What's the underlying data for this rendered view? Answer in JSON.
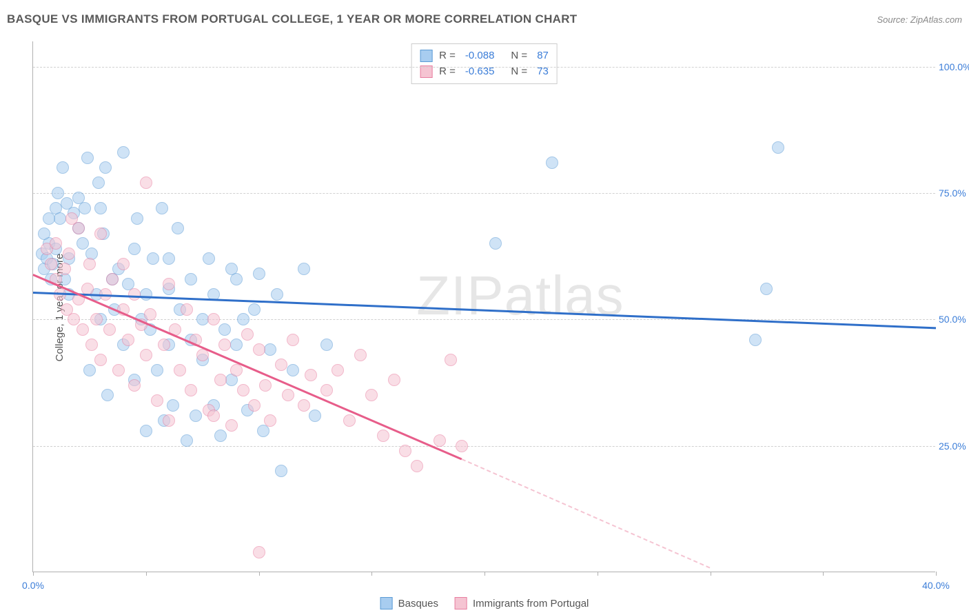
{
  "header": {
    "title": "BASQUE VS IMMIGRANTS FROM PORTUGAL COLLEGE, 1 YEAR OR MORE CORRELATION CHART",
    "source": "Source: ZipAtlas.com"
  },
  "watermark": "ZIPatlas",
  "chart": {
    "type": "scatter",
    "ylabel": "College, 1 year or more",
    "background_color": "#ffffff",
    "grid_color": "#d0d0d0",
    "axis_color": "#b0b0b0",
    "tick_label_color": "#3b7dd8",
    "xlim": [
      0,
      40
    ],
    "ylim": [
      0,
      105
    ],
    "xticks": [
      0,
      5,
      10,
      15,
      20,
      25,
      30,
      35,
      40
    ],
    "xtick_labels": {
      "0": "0.0%",
      "40": "40.0%"
    },
    "yticks": [
      25,
      50,
      75,
      100
    ],
    "ytick_labels": {
      "25": "25.0%",
      "50": "50.0%",
      "75": "75.0%",
      "100": "100.0%"
    },
    "marker_size": 18,
    "label_fontsize": 15,
    "tick_fontsize": 14,
    "series": [
      {
        "name": "Basques",
        "color_fill": "#a8cdf0",
        "color_stroke": "#5b9bd5",
        "reg_line_color": "#2f6fc9",
        "R": "-0.088",
        "N": "87",
        "regression": {
          "x1": 0,
          "y1": 55.5,
          "x2": 40,
          "y2": 48.5
        },
        "points": [
          [
            0.4,
            63
          ],
          [
            0.5,
            60
          ],
          [
            0.6,
            62
          ],
          [
            0.7,
            65
          ],
          [
            0.5,
            67
          ],
          [
            0.8,
            58
          ],
          [
            0.9,
            61
          ],
          [
            1.0,
            72
          ],
          [
            1.2,
            70
          ],
          [
            1.0,
            64
          ],
          [
            1.3,
            80
          ],
          [
            1.5,
            73
          ],
          [
            1.6,
            62
          ],
          [
            1.8,
            71
          ],
          [
            2.0,
            74
          ],
          [
            2.0,
            68
          ],
          [
            1.4,
            58
          ],
          [
            1.6,
            55
          ],
          [
            2.2,
            65
          ],
          [
            2.3,
            72
          ],
          [
            2.4,
            82
          ],
          [
            2.5,
            40
          ],
          [
            2.6,
            63
          ],
          [
            2.8,
            55
          ],
          [
            3.0,
            50
          ],
          [
            3.0,
            72
          ],
          [
            3.1,
            67
          ],
          [
            3.3,
            35
          ],
          [
            3.5,
            58
          ],
          [
            3.6,
            52
          ],
          [
            3.8,
            60
          ],
          [
            4.0,
            83
          ],
          [
            4.0,
            45
          ],
          [
            4.2,
            57
          ],
          [
            4.5,
            64
          ],
          [
            4.5,
            38
          ],
          [
            4.8,
            50
          ],
          [
            5.0,
            55
          ],
          [
            5.0,
            28
          ],
          [
            5.2,
            48
          ],
          [
            5.3,
            62
          ],
          [
            5.5,
            40
          ],
          [
            5.8,
            30
          ],
          [
            6.0,
            56
          ],
          [
            6.0,
            45
          ],
          [
            6.2,
            33
          ],
          [
            6.5,
            52
          ],
          [
            6.8,
            26
          ],
          [
            7.0,
            58
          ],
          [
            7.2,
            31
          ],
          [
            7.5,
            50
          ],
          [
            7.5,
            42
          ],
          [
            8.0,
            55
          ],
          [
            8.0,
            33
          ],
          [
            8.3,
            27
          ],
          [
            8.5,
            48
          ],
          [
            8.8,
            60
          ],
          [
            9.0,
            45
          ],
          [
            9.5,
            32
          ],
          [
            9.8,
            52
          ],
          [
            10.0,
            59
          ],
          [
            10.2,
            28
          ],
          [
            10.5,
            44
          ],
          [
            10.8,
            55
          ],
          [
            11.0,
            20
          ],
          [
            11.5,
            40
          ],
          [
            12.0,
            60
          ],
          [
            12.5,
            31
          ],
          [
            13.0,
            45
          ],
          [
            9.0,
            58
          ],
          [
            5.7,
            72
          ],
          [
            3.2,
            80
          ],
          [
            6.4,
            68
          ],
          [
            7.8,
            62
          ],
          [
            4.6,
            70
          ],
          [
            2.9,
            77
          ],
          [
            1.1,
            75
          ],
          [
            0.7,
            70
          ],
          [
            20.5,
            65
          ],
          [
            23.0,
            81
          ],
          [
            32.5,
            56
          ],
          [
            33.0,
            84
          ],
          [
            32.0,
            46
          ],
          [
            6.0,
            62
          ],
          [
            8.8,
            38
          ],
          [
            7.0,
            46
          ],
          [
            9.3,
            50
          ]
        ]
      },
      {
        "name": "Immigrants from Portugal",
        "color_fill": "#f5c4d2",
        "color_stroke": "#e87ea0",
        "reg_line_color": "#e75d8a",
        "reg_line_end_color": "#f5c4d2",
        "R": "-0.635",
        "N": "73",
        "regression": {
          "x1": 0,
          "y1": 59,
          "x2": 19,
          "y2": 22.5
        },
        "regression_extrap": {
          "x1": 19,
          "y1": 22.5,
          "x2": 30,
          "y2": 1
        },
        "points": [
          [
            0.6,
            64
          ],
          [
            0.8,
            61
          ],
          [
            1.0,
            58
          ],
          [
            1.0,
            65
          ],
          [
            1.2,
            55
          ],
          [
            1.4,
            60
          ],
          [
            1.5,
            52
          ],
          [
            1.6,
            63
          ],
          [
            1.8,
            50
          ],
          [
            2.0,
            68
          ],
          [
            2.0,
            54
          ],
          [
            2.2,
            48
          ],
          [
            2.4,
            56
          ],
          [
            2.5,
            61
          ],
          [
            2.6,
            45
          ],
          [
            2.8,
            50
          ],
          [
            3.0,
            67
          ],
          [
            3.0,
            42
          ],
          [
            3.2,
            55
          ],
          [
            3.4,
            48
          ],
          [
            3.5,
            58
          ],
          [
            3.8,
            40
          ],
          [
            4.0,
            52
          ],
          [
            4.0,
            61
          ],
          [
            4.2,
            46
          ],
          [
            4.5,
            55
          ],
          [
            4.5,
            37
          ],
          [
            4.8,
            49
          ],
          [
            5.0,
            77
          ],
          [
            5.0,
            43
          ],
          [
            5.2,
            51
          ],
          [
            5.5,
            34
          ],
          [
            5.8,
            45
          ],
          [
            6.0,
            57
          ],
          [
            6.0,
            30
          ],
          [
            6.3,
            48
          ],
          [
            6.5,
            40
          ],
          [
            6.8,
            52
          ],
          [
            7.0,
            36
          ],
          [
            7.2,
            46
          ],
          [
            7.5,
            43
          ],
          [
            7.8,
            32
          ],
          [
            8.0,
            50
          ],
          [
            8.0,
            31
          ],
          [
            8.3,
            38
          ],
          [
            8.5,
            45
          ],
          [
            8.8,
            29
          ],
          [
            9.0,
            40
          ],
          [
            9.3,
            36
          ],
          [
            9.5,
            47
          ],
          [
            9.8,
            33
          ],
          [
            10.0,
            44
          ],
          [
            10.0,
            4
          ],
          [
            10.3,
            37
          ],
          [
            10.5,
            30
          ],
          [
            11.0,
            41
          ],
          [
            11.3,
            35
          ],
          [
            11.5,
            46
          ],
          [
            12.0,
            33
          ],
          [
            12.3,
            39
          ],
          [
            13.0,
            36
          ],
          [
            13.5,
            40
          ],
          [
            14.0,
            30
          ],
          [
            14.5,
            43
          ],
          [
            15.0,
            35
          ],
          [
            15.5,
            27
          ],
          [
            16.0,
            38
          ],
          [
            16.5,
            24
          ],
          [
            17.0,
            21
          ],
          [
            18.0,
            26
          ],
          [
            18.5,
            42
          ],
          [
            19.0,
            25
          ],
          [
            1.7,
            70
          ]
        ]
      }
    ]
  },
  "legend_bottom": [
    {
      "label": "Basques",
      "fill": "#a8cdf0",
      "stroke": "#5b9bd5"
    },
    {
      "label": "Immigrants from Portugal",
      "fill": "#f5c4d2",
      "stroke": "#e87ea0"
    }
  ]
}
